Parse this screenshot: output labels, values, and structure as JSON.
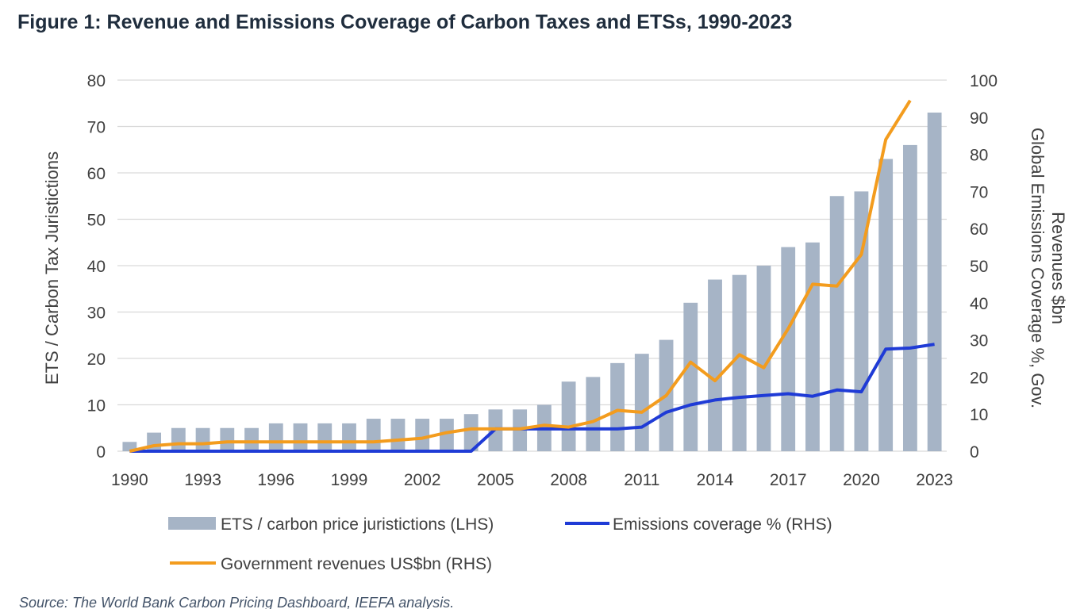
{
  "figure": {
    "title": "Figure 1: Revenue and Emissions Coverage of Carbon Taxes and ETSs, 1990-2023",
    "source": "Source: The World Bank Carbon Pricing Dashboard, IEEFA analysis."
  },
  "colors": {
    "bars": "#a6b4c6",
    "emissions_line": "#1f3bd6",
    "revenue_line": "#f39c1e",
    "gridline": "#d9d9d9",
    "tick_text": "#404040"
  },
  "chart_data": {
    "type": "bar",
    "x": [
      1990,
      1991,
      1992,
      1993,
      1994,
      1995,
      1996,
      1997,
      1998,
      1999,
      2000,
      2001,
      2002,
      2003,
      2004,
      2005,
      2006,
      2007,
      2008,
      2009,
      2010,
      2011,
      2012,
      2013,
      2014,
      2015,
      2016,
      2017,
      2018,
      2019,
      2020,
      2021,
      2022,
      2023
    ],
    "x_tick_labels": [
      "1990",
      "1993",
      "1996",
      "1999",
      "2002",
      "2005",
      "2008",
      "2011",
      "2014",
      "2017",
      "2020",
      "2023"
    ],
    "ylabel_left": "ETS / Carbon Tax Juristictions",
    "ylabel_right_line1": "Global Emissions Coverage %, Gov.",
    "ylabel_right_line2": "Revenues $bn",
    "ylim_left": [
      0,
      80
    ],
    "ylim_right": [
      0,
      100
    ],
    "yticks_left": [
      0,
      10,
      20,
      30,
      40,
      50,
      60,
      70,
      80
    ],
    "yticks_right": [
      0,
      10,
      20,
      30,
      40,
      50,
      60,
      70,
      80,
      90,
      100
    ],
    "grid": true,
    "legend_position": "bottom",
    "series": [
      {
        "name": "ETS / carbon price juristictions (LHS)",
        "kind": "bar",
        "axis": "left",
        "values": [
          2,
          4,
          5,
          5,
          5,
          5,
          6,
          6,
          6,
          6,
          7,
          7,
          7,
          7,
          8,
          9,
          9,
          10,
          15,
          16,
          19,
          21,
          24,
          32,
          37,
          38,
          40,
          44,
          45,
          55,
          56,
          63,
          66,
          73
        ]
      },
      {
        "name": "Emissions coverage % (RHS)",
        "kind": "line",
        "axis": "right",
        "values": [
          0,
          0,
          0,
          0,
          0,
          0,
          0,
          0,
          0,
          0,
          0,
          0,
          0,
          0,
          0,
          6,
          6,
          6,
          6,
          6,
          6,
          6.5,
          10.5,
          12.5,
          13.8,
          14.5,
          15,
          15.5,
          14.8,
          16.5,
          16,
          27.5,
          27.8,
          28.8
        ]
      },
      {
        "name": "Government revenues US$bn (RHS)",
        "kind": "line",
        "axis": "right",
        "values": [
          0,
          1.5,
          2,
          2,
          2.5,
          2.5,
          2.5,
          2.5,
          2.5,
          2.5,
          2.5,
          3,
          3.5,
          5,
          6,
          6,
          6,
          7,
          6.5,
          8,
          11,
          10.5,
          15,
          24,
          19,
          26,
          22.5,
          33,
          45,
          44.5,
          53,
          84,
          94.5,
          null
        ]
      }
    ]
  }
}
